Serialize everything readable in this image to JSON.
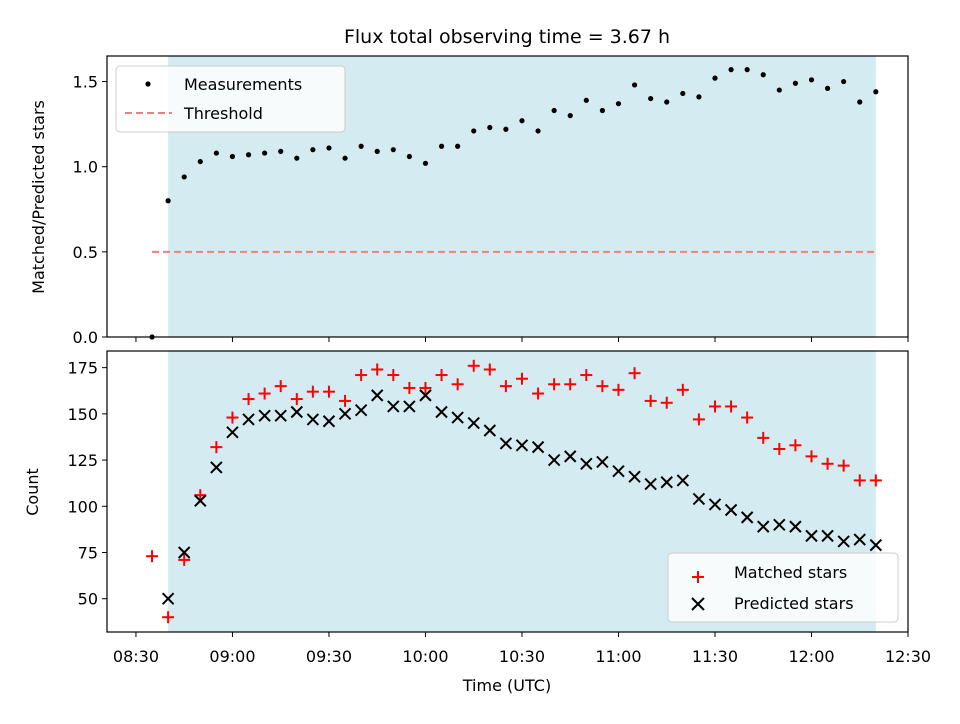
{
  "chart_data": [
    {
      "type": "scatter",
      "title": "Flux total observing time = 3.67 h",
      "ylabel": "Matched/Predicted stars",
      "ylim": [
        0,
        1.65
      ],
      "yticks": [
        0.0,
        0.5,
        1.0,
        1.5
      ],
      "ytick_labels": [
        "0.0",
        "0.5",
        "1.0",
        "1.5"
      ],
      "xlim": [
        "08:21",
        "12:30"
      ],
      "observing_span": [
        "08:40",
        "12:20"
      ],
      "observing_span_color": "#d4ebf1",
      "legend_placement": "top-left",
      "series": [
        {
          "name": "Measurements",
          "marker": "dot",
          "color": "#000000",
          "x": [
            "08:35",
            "08:40",
            "08:45",
            "08:50",
            "08:55",
            "09:00",
            "09:05",
            "09:10",
            "09:15",
            "09:20",
            "09:25",
            "09:30",
            "09:35",
            "09:40",
            "09:45",
            "09:50",
            "09:55",
            "10:00",
            "10:05",
            "10:10",
            "10:15",
            "10:20",
            "10:25",
            "10:30",
            "10:35",
            "10:40",
            "10:45",
            "10:50",
            "10:55",
            "11:00",
            "11:05",
            "11:10",
            "11:15",
            "11:20",
            "11:25",
            "11:30",
            "11:35",
            "11:40",
            "11:45",
            "11:50",
            "11:55",
            "12:00",
            "12:05",
            "12:10",
            "12:15",
            "12:20"
          ],
          "y": [
            0.0,
            0.8,
            0.94,
            1.03,
            1.08,
            1.06,
            1.07,
            1.08,
            1.09,
            1.05,
            1.1,
            1.11,
            1.05,
            1.12,
            1.09,
            1.1,
            1.06,
            1.02,
            1.12,
            1.12,
            1.21,
            1.23,
            1.22,
            1.27,
            1.21,
            1.33,
            1.3,
            1.39,
            1.33,
            1.37,
            1.48,
            1.4,
            1.38,
            1.43,
            1.41,
            1.52,
            1.57,
            1.57,
            1.54,
            1.45,
            1.49,
            1.51,
            1.46,
            1.5,
            1.38,
            1.44
          ]
        },
        {
          "name": "Threshold",
          "marker": "dashed-line",
          "color": "#f08080",
          "x": [
            "08:35",
            "12:20"
          ],
          "y": [
            0.5,
            0.5
          ]
        }
      ]
    },
    {
      "type": "scatter",
      "xlabel": "Time (UTC)",
      "ylabel": "Count",
      "ylim": [
        32,
        184
      ],
      "yticks": [
        50,
        75,
        100,
        125,
        150,
        175
      ],
      "ytick_labels": [
        "50",
        "75",
        "100",
        "125",
        "150",
        "175"
      ],
      "xlim": [
        "08:21",
        "12:30"
      ],
      "xticks": [
        "08:30",
        "09:00",
        "09:30",
        "10:00",
        "10:30",
        "11:00",
        "11:30",
        "12:00",
        "12:30"
      ],
      "observing_span": [
        "08:40",
        "12:20"
      ],
      "observing_span_color": "#d4ebf1",
      "legend_placement": "bottom-right",
      "series": [
        {
          "name": "Matched stars",
          "marker": "plus",
          "color": "#ff0000",
          "x": [
            "08:35",
            "08:40",
            "08:45",
            "08:50",
            "08:55",
            "09:00",
            "09:05",
            "09:10",
            "09:15",
            "09:20",
            "09:25",
            "09:30",
            "09:35",
            "09:40",
            "09:45",
            "09:50",
            "09:55",
            "10:00",
            "10:05",
            "10:10",
            "10:15",
            "10:20",
            "10:25",
            "10:30",
            "10:35",
            "10:40",
            "10:45",
            "10:50",
            "10:55",
            "11:00",
            "11:05",
            "11:10",
            "11:15",
            "11:20",
            "11:25",
            "11:30",
            "11:35",
            "11:40",
            "11:45",
            "11:50",
            "11:55",
            "12:00",
            "12:05",
            "12:10",
            "12:15",
            "12:20"
          ],
          "y": [
            73,
            40,
            71,
            106,
            132,
            148,
            158,
            161,
            165,
            158,
            162,
            162,
            157,
            171,
            174,
            171,
            164,
            164,
            171,
            166,
            176,
            174,
            165,
            169,
            161,
            166,
            166,
            171,
            165,
            163,
            172,
            157,
            156,
            163,
            147,
            154,
            154,
            148,
            137,
            131,
            133,
            127,
            123,
            122,
            114,
            114
          ]
        },
        {
          "name": "Predicted stars",
          "marker": "x",
          "color": "#000000",
          "x": [
            "08:40",
            "08:45",
            "08:50",
            "08:55",
            "09:00",
            "09:05",
            "09:10",
            "09:15",
            "09:20",
            "09:25",
            "09:30",
            "09:35",
            "09:40",
            "09:45",
            "09:50",
            "09:55",
            "10:00",
            "10:05",
            "10:10",
            "10:15",
            "10:20",
            "10:25",
            "10:30",
            "10:35",
            "10:40",
            "10:45",
            "10:50",
            "10:55",
            "11:00",
            "11:05",
            "11:10",
            "11:15",
            "11:20",
            "11:25",
            "11:30",
            "11:35",
            "11:40",
            "11:45",
            "11:50",
            "11:55",
            "12:00",
            "12:05",
            "12:10",
            "12:15",
            "12:20"
          ],
          "y": [
            50,
            75,
            103,
            121,
            140,
            147,
            149,
            149,
            151,
            147,
            146,
            150,
            152,
            160,
            154,
            154,
            160,
            151,
            148,
            145,
            141,
            134,
            133,
            132,
            125,
            127,
            123,
            124,
            119,
            116,
            112,
            113,
            114,
            104,
            101,
            98,
            94,
            89,
            90,
            89,
            84,
            84,
            81,
            82,
            79
          ]
        }
      ]
    }
  ],
  "shared": {
    "xtick_labels": [
      "08:30",
      "09:00",
      "09:30",
      "10:00",
      "10:30",
      "11:00",
      "11:30",
      "12:00",
      "12:30"
    ]
  }
}
